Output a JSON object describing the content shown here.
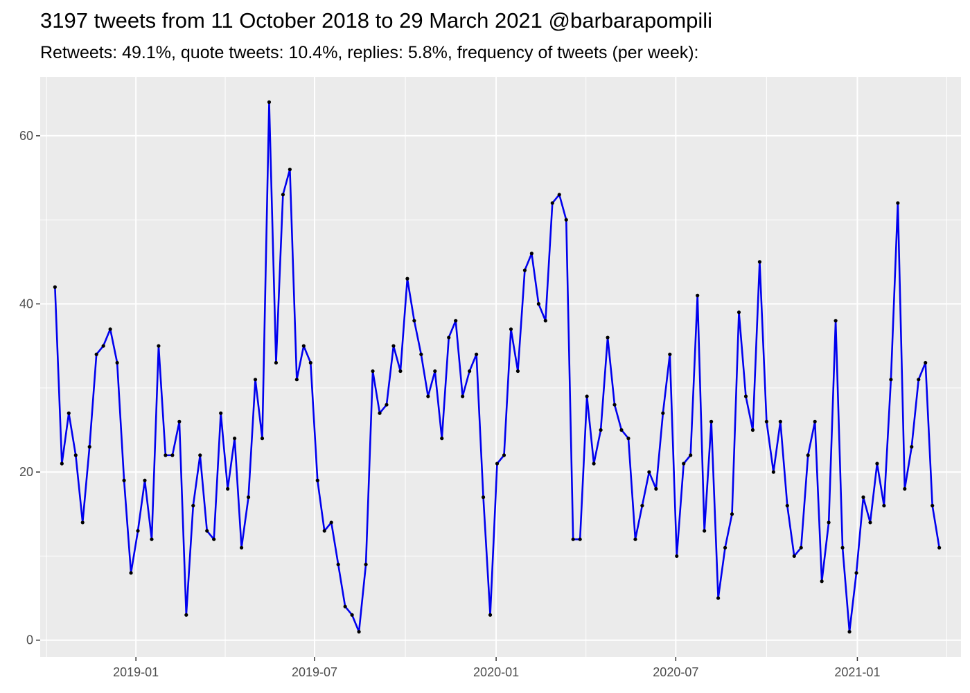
{
  "title": "3197 tweets from 11 October 2018 to 29 March 2021 @barbarapompili",
  "subtitle": "Retweets: 49.1%, quote tweets: 10.4%, replies: 5.8%, frequency of tweets (per week):",
  "colors": {
    "panel_background": "#ebebeb",
    "grid_major": "#ffffff",
    "line": "#0000ee",
    "points": "#000000",
    "tick_label": "#4d4d4d"
  },
  "chart_data": {
    "type": "line",
    "x_label": "",
    "y_label": "",
    "grid": true,
    "legend": "none",
    "ylim": [
      -2,
      67
    ],
    "xlim": [
      "2018-09-26",
      "2021-04-16"
    ],
    "y_ticks": [
      0,
      20,
      40,
      60
    ],
    "x_ticks": [
      {
        "date": "2019-01-01",
        "label": "2019-01"
      },
      {
        "date": "2019-07-01",
        "label": "2019-07"
      },
      {
        "date": "2020-01-01",
        "label": "2020-01"
      },
      {
        "date": "2020-07-01",
        "label": "2020-07"
      },
      {
        "date": "2021-01-01",
        "label": "2021-01"
      }
    ],
    "series": [
      {
        "start_date": "2018-10-11",
        "interval_days": 7,
        "values": [
          42,
          21,
          27,
          22,
          14,
          23,
          34,
          35,
          37,
          33,
          19,
          8,
          13,
          19,
          12,
          35,
          22,
          22,
          26,
          3,
          16,
          22,
          13,
          12,
          27,
          18,
          24,
          11,
          17,
          31,
          24,
          64,
          33,
          53,
          56,
          31,
          35,
          33,
          19,
          13,
          14,
          9,
          4,
          3,
          1,
          9,
          32,
          27,
          28,
          35,
          32,
          43,
          38,
          34,
          29,
          32,
          24,
          36,
          38,
          29,
          32,
          34,
          17,
          3,
          21,
          22,
          37,
          32,
          44,
          46,
          40,
          38,
          52,
          53,
          50,
          12,
          12,
          29,
          21,
          25,
          36,
          28,
          25,
          24,
          12,
          16,
          20,
          18,
          27,
          34,
          10,
          21,
          22,
          41,
          13,
          26,
          5,
          11,
          15,
          39,
          29,
          25,
          45,
          26,
          20,
          26,
          16,
          10,
          11,
          22,
          26,
          7,
          14,
          38,
          11,
          1,
          8,
          17,
          14,
          21,
          16,
          31,
          52,
          18,
          23,
          31,
          33,
          16,
          11
        ]
      }
    ]
  }
}
